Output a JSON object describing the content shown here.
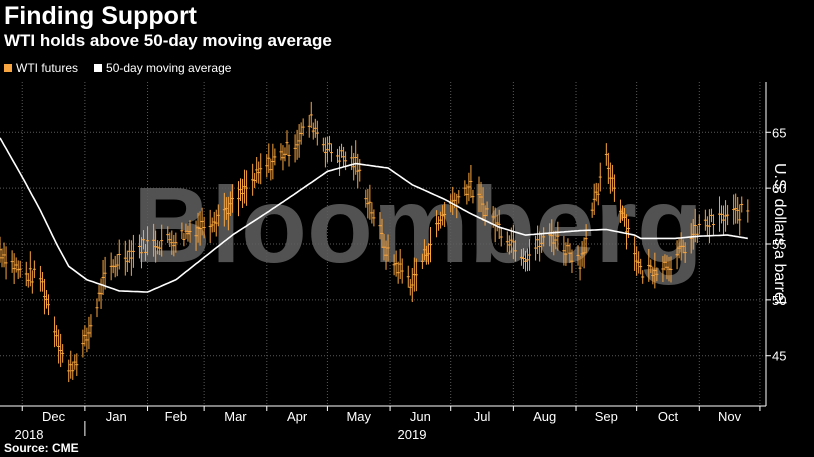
{
  "header": {
    "title": "Finding Support",
    "subtitle": "WTI holds above 50-day moving average"
  },
  "footer": {
    "source": "Source: CME"
  },
  "watermark": "Bloomberg",
  "colors": {
    "background": "#000000",
    "wti": "#f7a540",
    "ma": "#ffffff",
    "grid": "#5a5a5a",
    "watermark": "#5e5e5e"
  },
  "chart_data": {
    "type": "line",
    "title": "Finding Support",
    "subtitle": "WTI holds above 50-day moving average",
    "xlabel": "",
    "ylabel": "U.S. dollars a barrel",
    "ylim": [
      40.5,
      69.5
    ],
    "y_ticks": [
      "45",
      "50",
      "55",
      "60",
      "65"
    ],
    "y_tick_values": [
      45,
      50,
      55,
      60,
      65
    ],
    "x_ticks": [
      "Dec",
      "Jan",
      "Feb",
      "Mar",
      "Apr",
      "May",
      "Jun",
      "Jul",
      "Aug",
      "Sep",
      "Oct",
      "Nov"
    ],
    "x_year_labels": [
      "2018",
      "2019"
    ],
    "grid": true,
    "legend_position": "top-left",
    "x_dates": [
      "2018-11-20",
      "2018-12-01",
      "2018-12-10",
      "2018-12-18",
      "2018-12-24",
      "2019-01-02",
      "2019-01-10",
      "2019-01-18",
      "2019-02-01",
      "2019-02-15",
      "2019-03-01",
      "2019-03-15",
      "2019-04-01",
      "2019-04-15",
      "2019-04-23",
      "2019-05-01",
      "2019-05-15",
      "2019-05-31",
      "2019-06-12",
      "2019-06-28",
      "2019-07-10",
      "2019-07-25",
      "2019-08-07",
      "2019-08-20",
      "2019-09-03",
      "2019-09-16",
      "2019-09-30",
      "2019-10-03",
      "2019-10-20",
      "2019-11-01",
      "2019-11-15",
      "2019-11-25"
    ],
    "series": [
      {
        "name": "WTI futures",
        "values": [
          54.5,
          52.3,
          52.0,
          47.0,
          43.5,
          46.5,
          51.5,
          53.8,
          55.0,
          55.5,
          56.8,
          58.5,
          62.0,
          64.0,
          66.0,
          63.5,
          62.2,
          54.0,
          51.5,
          58.0,
          60.2,
          56.5,
          54.0,
          55.8,
          53.5,
          62.5,
          54.5,
          52.5,
          53.5,
          56.5,
          57.5,
          58.0
        ]
      },
      {
        "name": "50-day moving average",
        "values": [
          64.5,
          61.0,
          58.0,
          55.0,
          53.0,
          51.8,
          51.3,
          50.8,
          50.7,
          51.8,
          53.8,
          55.8,
          57.8,
          59.5,
          60.5,
          61.5,
          62.2,
          61.8,
          60.3,
          59.0,
          57.8,
          56.5,
          55.8,
          56.0,
          56.2,
          56.3,
          55.8,
          55.5,
          55.5,
          55.7,
          55.8,
          55.5
        ]
      }
    ]
  }
}
